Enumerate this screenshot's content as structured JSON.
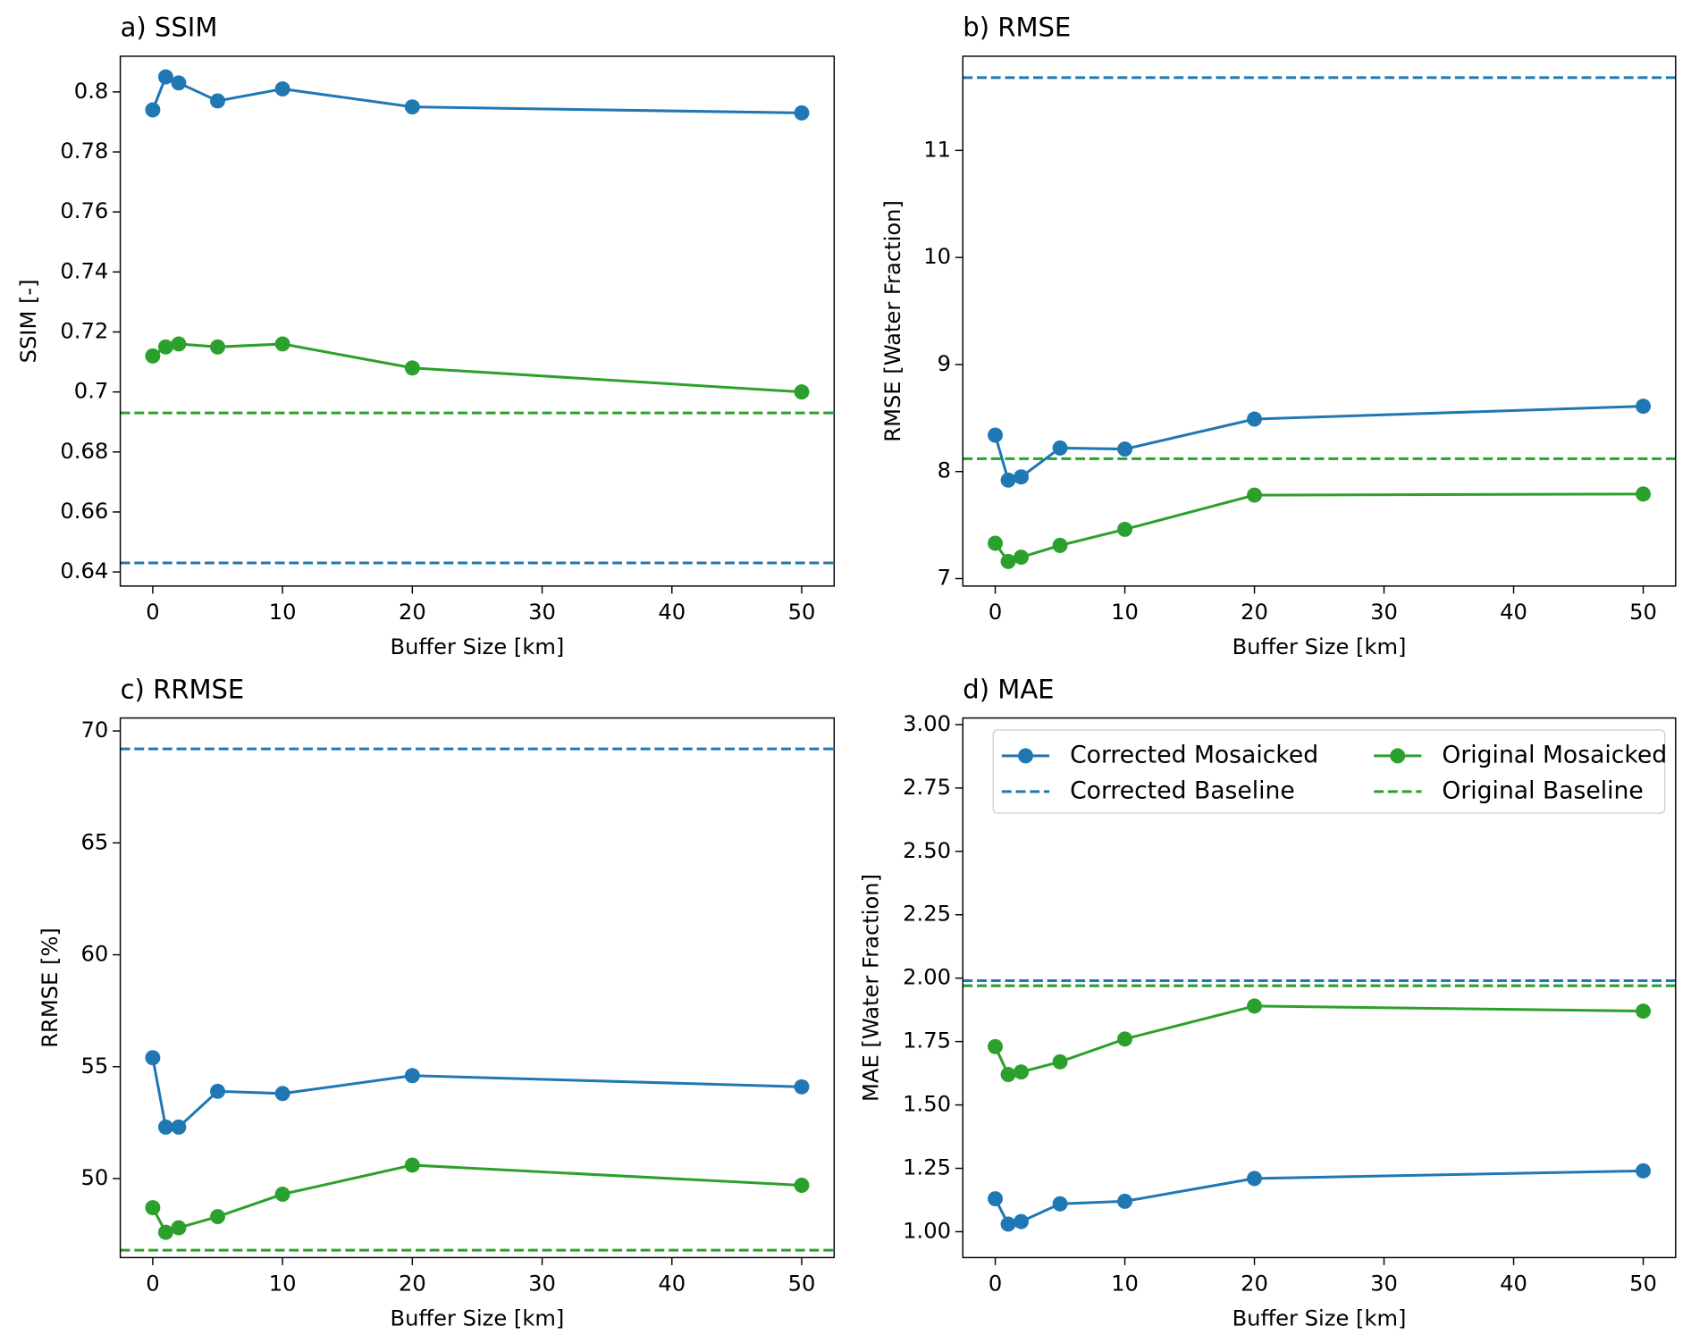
{
  "chart_data": [
    {
      "type": "line",
      "title": "a) SSIM",
      "xlabel": "Buffer Size [km]",
      "ylabel": "SSIM [-]",
      "x": [
        0,
        1,
        2,
        5,
        10,
        20,
        50
      ],
      "xlim": [
        -2.5,
        52.5
      ],
      "xticks": [
        0,
        10,
        20,
        30,
        40,
        50
      ],
      "ylim": [
        0.6353,
        0.8119
      ],
      "yticks": [
        0.64,
        0.66,
        0.68,
        0.7,
        0.72,
        0.74,
        0.76,
        0.78,
        0.8
      ],
      "series": [
        {
          "color": "#1f77b4",
          "values": [
            0.794,
            0.805,
            0.803,
            0.797,
            0.801,
            0.795,
            0.793
          ]
        },
        {
          "color": "#2ca02c",
          "values": [
            0.712,
            0.715,
            0.716,
            0.715,
            0.716,
            0.708,
            0.7
          ]
        }
      ],
      "hlines": [
        {
          "color": "#1f77b4",
          "style": "dashed",
          "value": 0.643
        },
        {
          "color": "#2ca02c",
          "style": "dashed",
          "value": 0.693
        }
      ]
    },
    {
      "type": "line",
      "title": "b) RMSE",
      "xlabel": "Buffer Size [km]",
      "ylabel": "RMSE [Water Fraction]",
      "x": [
        0,
        1,
        2,
        5,
        10,
        20,
        50
      ],
      "xlim": [
        -2.5,
        52.5
      ],
      "xticks": [
        0,
        10,
        20,
        30,
        40,
        50
      ],
      "ylim": [
        6.93,
        11.88
      ],
      "yticks": [
        7,
        8,
        9,
        10,
        11
      ],
      "series": [
        {
          "color": "#1f77b4",
          "values": [
            8.34,
            7.92,
            7.95,
            8.22,
            8.21,
            8.49,
            8.61
          ]
        },
        {
          "color": "#2ca02c",
          "values": [
            7.33,
            7.16,
            7.2,
            7.31,
            7.46,
            7.78,
            7.79
          ]
        }
      ],
      "hlines": [
        {
          "color": "#1f77b4",
          "style": "dashed",
          "value": 11.68
        },
        {
          "color": "#2ca02c",
          "style": "dashed",
          "value": 8.12
        }
      ]
    },
    {
      "type": "line",
      "title": "c) RRMSE",
      "xlabel": "Buffer Size [km]",
      "ylabel": "RRMSE [%]",
      "x": [
        0,
        1,
        2,
        5,
        10,
        20,
        50
      ],
      "xlim": [
        -2.5,
        52.5
      ],
      "xticks": [
        0,
        10,
        20,
        30,
        40,
        50
      ],
      "ylim": [
        46.47,
        70.58
      ],
      "yticks": [
        50,
        55,
        60,
        65,
        70
      ],
      "series": [
        {
          "color": "#1f77b4",
          "values": [
            55.4,
            52.3,
            52.3,
            53.9,
            53.8,
            54.6,
            54.1
          ]
        },
        {
          "color": "#2ca02c",
          "values": [
            48.7,
            47.6,
            47.8,
            48.3,
            49.3,
            50.6,
            49.7
          ]
        }
      ],
      "hlines": [
        {
          "color": "#1f77b4",
          "style": "dashed",
          "value": 69.2
        },
        {
          "color": "#2ca02c",
          "style": "dashed",
          "value": 46.8
        }
      ]
    },
    {
      "type": "line",
      "title": "d) MAE",
      "xlabel": "Buffer Size [km]",
      "ylabel": "MAE [Water Fraction]",
      "x": [
        0,
        1,
        2,
        5,
        10,
        20,
        50
      ],
      "xlim": [
        -2.5,
        52.5
      ],
      "xticks": [
        0,
        10,
        20,
        30,
        40,
        50
      ],
      "ylim": [
        0.898,
        3.026
      ],
      "yticks": [
        {
          "value": 1,
          "label": "1.00"
        },
        {
          "value": 1.25,
          "label": "1.25"
        },
        {
          "value": 1.5,
          "label": "1.50"
        },
        {
          "value": 1.75,
          "label": "1.75"
        },
        {
          "value": 2,
          "label": "2.00"
        },
        {
          "value": 2.25,
          "label": "2.25"
        },
        {
          "value": 2.5,
          "label": "2.50"
        },
        {
          "value": 2.75,
          "label": "2.75"
        },
        {
          "value": 3,
          "label": "3.00"
        }
      ],
      "legend": "upper center",
      "series": [
        {
          "name": "Corrected Mosaicked",
          "color": "#1f77b4",
          "values": [
            1.13,
            1.03,
            1.04,
            1.11,
            1.12,
            1.21,
            1.24
          ]
        },
        {
          "name": "Original Mosaicked",
          "color": "#2ca02c",
          "values": [
            1.73,
            1.62,
            1.63,
            1.67,
            1.76,
            1.89,
            1.87
          ]
        }
      ],
      "hlines": [
        {
          "name": "Corrected Baseline",
          "color": "#1f77b4",
          "style": "dashed",
          "value": 1.99
        },
        {
          "name": "Original Baseline",
          "color": "#2ca02c",
          "style": "dashed",
          "value": 1.97
        }
      ]
    }
  ]
}
